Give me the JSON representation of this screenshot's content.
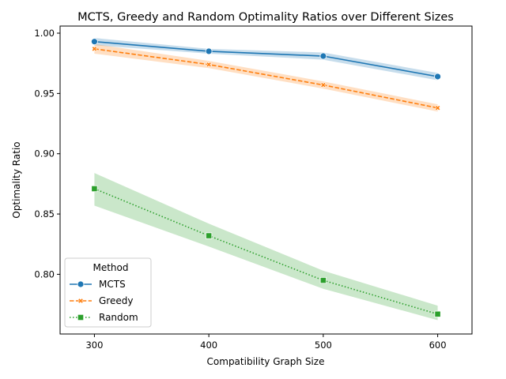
{
  "chart_data": {
    "type": "line",
    "title": "MCTS, Greedy and Random Optimality Ratios over Different Sizes",
    "xlabel": "Compatibility Graph Size",
    "ylabel": "Optimality Ratio",
    "x": [
      300,
      400,
      500,
      600
    ],
    "xticks": [
      "300",
      "400",
      "500",
      "600"
    ],
    "xlim": [
      270,
      630
    ],
    "yticks": [
      "0.80",
      "0.85",
      "0.90",
      "0.95",
      "1.00"
    ],
    "ytick_values": [
      0.8,
      0.85,
      0.9,
      0.95,
      1.0
    ],
    "ylim": [
      0.7505,
      1.0059
    ],
    "grid": false,
    "legend": {
      "title": "Method",
      "placement": "lower-left"
    },
    "series": [
      {
        "name": "MCTS",
        "color": "#1f77b4",
        "linestyle": "solid",
        "marker": "circle",
        "values": [
          0.993,
          0.985,
          0.981,
          0.964
        ],
        "ci_lower": [
          0.99,
          0.983,
          0.978,
          0.961
        ],
        "ci_upper": [
          0.996,
          0.987,
          0.984,
          0.967
        ]
      },
      {
        "name": "Greedy",
        "color": "#ff7f0e",
        "linestyle": "dashed",
        "marker": "x",
        "values": [
          0.987,
          0.974,
          0.957,
          0.938
        ],
        "ci_lower": [
          0.983,
          0.971,
          0.954,
          0.935
        ],
        "ci_upper": [
          0.991,
          0.977,
          0.96,
          0.941
        ]
      },
      {
        "name": "Random",
        "color": "#2ca02c",
        "linestyle": "dotted",
        "marker": "square",
        "values": [
          0.871,
          0.832,
          0.795,
          0.767
        ],
        "ci_lower": [
          0.857,
          0.823,
          0.788,
          0.762
        ],
        "ci_upper": [
          0.884,
          0.842,
          0.803,
          0.774
        ]
      }
    ]
  }
}
